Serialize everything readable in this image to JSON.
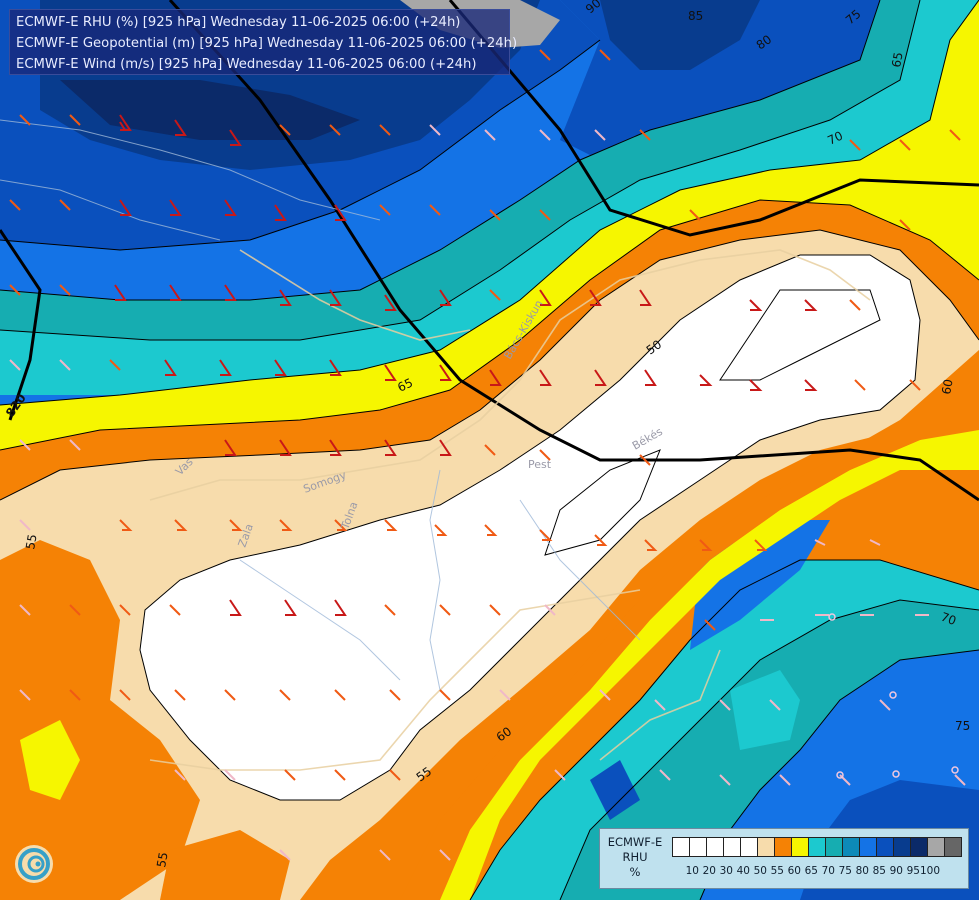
{
  "header": {
    "lines": [
      "ECMWF-E RHU (%) [925 hPa] Wednesday 11-06-2025 06:00 (+24h)",
      "ECMWF-E Geopotential (m) [925 hPa] Wednesday 11-06-2025 06:00 (+24h)",
      "ECMWF-E Wind (m/s) [925 hPa] Wednesday 11-06-2025 06:00 (+24h)"
    ]
  },
  "legend": {
    "title_lines": [
      "ECMWF-E",
      "RHU",
      "%"
    ],
    "colors": [
      "#ffffff",
      "#ffffff",
      "#ffffff",
      "#ffffff",
      "#ffffff",
      "#f7dcac",
      "#f58205",
      "#f6f600",
      "#1cc9cf",
      "#16adb1",
      "#0d8ab8",
      "#1473e6",
      "#0a50bd",
      "#083c8e",
      "#0b2a69",
      "#a7a7a7",
      "#666666"
    ],
    "ticks": [
      "10",
      "20",
      "30",
      "40",
      "50",
      "55",
      "60",
      "65",
      "70",
      "75",
      "80",
      "85",
      "90",
      "95",
      "100"
    ]
  },
  "map": {
    "contour_labels": [
      "90",
      "85",
      "80",
      "75",
      "70",
      "65",
      "65",
      "60",
      "60",
      "55",
      "55",
      "55",
      "50",
      "70",
      "75",
      "820"
    ],
    "place_labels": [
      "Pest",
      "Békés",
      "Zala",
      "Vas",
      "Somogy",
      "Tolna",
      "Bács-Kiskun"
    ],
    "rhu_fill_colors": {
      "white": "#ffffff",
      "c55": "#f7dcac",
      "c60": "#f58205",
      "c65": "#f6f600",
      "c70": "#1cc9cf",
      "c75": "#16adb1",
      "c80": "#1473e6",
      "c85": "#0a50bd",
      "c90": "#083c8e",
      "c95": "#a7a7a7"
    }
  }
}
